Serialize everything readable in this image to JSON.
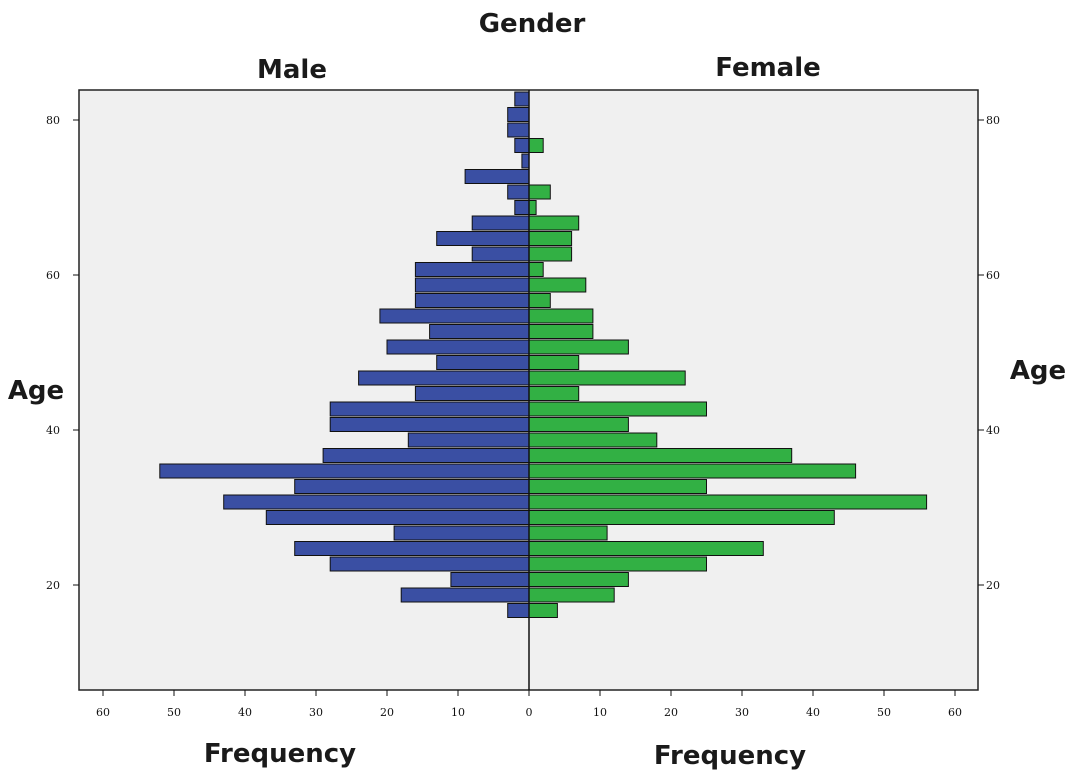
{
  "chart_data": {
    "type": "bar",
    "title": "Gender",
    "panels": [
      "Male",
      "Female"
    ],
    "ylabel": "Age",
    "xlabel": "Frequency",
    "ylim": [
      7,
      87
    ],
    "xlim": [
      0,
      60
    ],
    "y_ticks": [
      "20",
      "40",
      "60",
      "80"
    ],
    "x_ticks": [
      "60",
      "50",
      "40",
      "30",
      "20",
      "10",
      "0",
      "10",
      "20",
      "30",
      "40",
      "50",
      "60"
    ],
    "age_bins": [
      18,
      20,
      22,
      24,
      26,
      28,
      30,
      32,
      34,
      36,
      38,
      40,
      42,
      44,
      46,
      48,
      50,
      52,
      54,
      56,
      58,
      60,
      62,
      64,
      66,
      68,
      70,
      72,
      74,
      76
    ],
    "series": [
      {
        "name": "Male",
        "color": "#3a4fa3",
        "values": [
          3,
          18,
          11,
          28,
          33,
          19,
          37,
          43,
          33,
          52,
          29,
          17,
          28,
          28,
          16,
          24,
          13,
          20,
          14,
          21,
          16,
          16,
          16,
          8,
          13,
          8,
          2,
          3,
          9,
          1
        ]
      },
      {
        "name": "Female",
        "color": "#32b044",
        "values": [
          4,
          12,
          14,
          25,
          33,
          11,
          43,
          56,
          25,
          46,
          37,
          18,
          14,
          25,
          7,
          22,
          7,
          14,
          9,
          9,
          3,
          8,
          2,
          6,
          6,
          7,
          1,
          3,
          0,
          0
        ]
      }
    ],
    "extra_male": {
      "ages": [
        78,
        80,
        82,
        84
      ],
      "values": [
        2,
        3,
        3,
        2
      ]
    },
    "extra_female": {
      "ages": [
        78
      ],
      "values": [
        2
      ]
    },
    "grid": false,
    "background": "#f0f0f0"
  }
}
